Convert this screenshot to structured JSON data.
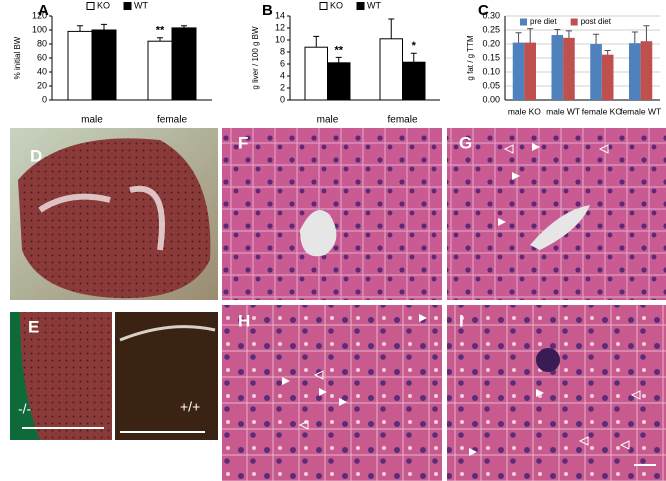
{
  "chart_data": [
    {
      "type": "bar",
      "panel": "A",
      "ylabel": "% initial BW",
      "categories": [
        "male",
        "female"
      ],
      "series": [
        {
          "name": "KO",
          "color": "#ffffff",
          "values": [
            98,
            84
          ],
          "errors": [
            8,
            5
          ]
        },
        {
          "name": "WT",
          "color": "#000000",
          "values": [
            100,
            103
          ],
          "errors": [
            8,
            3
          ]
        }
      ],
      "ylim": [
        0,
        120
      ],
      "yticks": [
        0,
        20,
        40,
        60,
        80,
        100,
        120
      ],
      "grid": false,
      "legend": "top",
      "annotations": [
        {
          "text": "**",
          "series": 0,
          "category": 1
        }
      ]
    },
    {
      "type": "bar",
      "panel": "B",
      "ylabel": "g liver / 100 g BW",
      "categories": [
        "male",
        "female"
      ],
      "series": [
        {
          "name": "KO",
          "color": "#ffffff",
          "values": [
            8.8,
            10.2
          ],
          "errors": [
            1.8,
            3.3
          ]
        },
        {
          "name": "WT",
          "color": "#000000",
          "values": [
            6.2,
            6.3
          ],
          "errors": [
            0.9,
            1.5
          ]
        }
      ],
      "ylim": [
        0,
        14
      ],
      "yticks": [
        0,
        2,
        4,
        6,
        8,
        10,
        12,
        14
      ],
      "grid": false,
      "legend": "top",
      "annotations": [
        {
          "text": "**",
          "series": 1,
          "category": 0
        },
        {
          "text": "*",
          "series": 1,
          "category": 1
        }
      ]
    },
    {
      "type": "bar",
      "panel": "C",
      "ylabel": "g fat / g TTM",
      "categories": [
        "male KO",
        "male WT",
        "female KO",
        "female WT"
      ],
      "series": [
        {
          "name": "pre diet",
          "color": "#4f81bd",
          "values": [
            0.205,
            0.232,
            0.2,
            0.203
          ],
          "errors": [
            0.035,
            0.02,
            0.035,
            0.04
          ]
        },
        {
          "name": "post diet",
          "color": "#c0504d",
          "values": [
            0.205,
            0.222,
            0.162,
            0.21
          ],
          "errors": [
            0.05,
            0.025,
            0.015,
            0.055
          ]
        }
      ],
      "ylim": [
        0,
        0.3
      ],
      "yticks": [
        {
          "value": 0,
          "label": "0.00"
        },
        {
          "value": 0.05,
          "label": "0.05"
        },
        {
          "value": 0.1,
          "label": "0.10"
        },
        {
          "value": 0.15,
          "label": "0.15"
        },
        {
          "value": 0.2,
          "label": "0.20"
        },
        {
          "value": 0.25,
          "label": "0.25"
        },
        {
          "value": 0.3,
          "label": "0.30"
        }
      ],
      "grid": true,
      "legend": "top-inside",
      "annotations": []
    }
  ],
  "panels": [
    "D",
    "E",
    "F",
    "G",
    "H",
    "I"
  ],
  "genotypes": [
    "-/-",
    "+/+"
  ]
}
